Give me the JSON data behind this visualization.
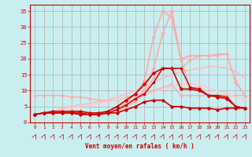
{
  "bg_color": "#c8eef0",
  "grid_color": "#b0b0b0",
  "xlabel": "Vent moyen/en rafales ( km/h )",
  "xlabel_color": "#cc0000",
  "tick_color": "#cc0000",
  "xlim": [
    -0.5,
    23.5
  ],
  "ylim": [
    0,
    37
  ],
  "yticks": [
    0,
    5,
    10,
    15,
    20,
    25,
    30,
    35
  ],
  "xticks": [
    0,
    1,
    2,
    3,
    4,
    5,
    6,
    7,
    8,
    9,
    10,
    11,
    12,
    13,
    14,
    15,
    16,
    17,
    18,
    19,
    20,
    21,
    22,
    23
  ],
  "lines": [
    {
      "x": [
        0,
        1,
        2,
        3,
        4,
        5,
        6,
        7,
        8,
        9,
        10,
        11,
        12,
        13,
        14,
        15,
        16,
        17,
        18,
        19,
        20,
        21,
        22,
        23
      ],
      "y": [
        8.5,
        8.5,
        8.5,
        8.5,
        8.0,
        8.0,
        7.5,
        7.0,
        7.0,
        7.0,
        8.0,
        8.5,
        9.0,
        10.0,
        11.0,
        12.0,
        8.5,
        8.5,
        8.5,
        8.5,
        8.5,
        8.5,
        8.5,
        8.5
      ],
      "color": "#ffaaaa",
      "lw": 1.0,
      "marker": "o",
      "ms": 2.0,
      "alpha": 1.0,
      "zorder": 2
    },
    {
      "x": [
        0,
        1,
        2,
        3,
        4,
        5,
        6,
        7,
        8,
        9,
        10,
        11,
        12,
        13,
        14,
        15,
        16,
        17,
        18,
        19,
        20,
        21,
        22,
        23
      ],
      "y": [
        2.5,
        3.0,
        3.5,
        4.5,
        5.0,
        5.5,
        6.0,
        6.5,
        7.0,
        8.0,
        9.0,
        10.0,
        11.0,
        12.5,
        14.0,
        15.0,
        16.0,
        16.5,
        17.0,
        17.5,
        17.5,
        17.0,
        16.0,
        14.0
      ],
      "color": "#ffbbbb",
      "lw": 1.2,
      "marker": null,
      "ms": 0,
      "alpha": 1.0,
      "zorder": 2
    },
    {
      "x": [
        0,
        1,
        2,
        3,
        4,
        5,
        6,
        7,
        8,
        9,
        10,
        11,
        12,
        13,
        14,
        15,
        16,
        17,
        18,
        19,
        20,
        21,
        22,
        23
      ],
      "y": [
        2.5,
        3.0,
        3.5,
        4.0,
        4.5,
        5.0,
        5.5,
        6.0,
        6.5,
        7.0,
        7.5,
        8.0,
        8.5,
        9.5,
        10.5,
        11.5,
        12.0,
        12.0,
        12.0,
        11.0,
        10.0,
        9.0,
        8.0,
        7.0
      ],
      "color": "#ffcccc",
      "lw": 1.2,
      "marker": null,
      "ms": 0,
      "alpha": 1.0,
      "zorder": 2
    },
    {
      "x": [
        0,
        1,
        2,
        3,
        4,
        5,
        6,
        7,
        8,
        9,
        10,
        11,
        12,
        13,
        14,
        15,
        16,
        17,
        18,
        19,
        20,
        21,
        22,
        23
      ],
      "y": [
        2.5,
        3.0,
        3.0,
        3.5,
        3.5,
        3.0,
        2.5,
        2.5,
        3.0,
        4.5,
        6.0,
        9.0,
        13.0,
        27.0,
        35.0,
        33.0,
        19.5,
        11.0,
        11.0,
        8.5,
        8.5,
        8.5,
        5.0,
        4.5
      ],
      "color": "#ffaaaa",
      "lw": 1.2,
      "marker": "o",
      "ms": 2.5,
      "alpha": 1.0,
      "zorder": 3
    },
    {
      "x": [
        0,
        1,
        2,
        3,
        4,
        5,
        6,
        7,
        8,
        9,
        10,
        11,
        12,
        13,
        14,
        15,
        16,
        17,
        18,
        19,
        20,
        21,
        22,
        23
      ],
      "y": [
        2.5,
        3.0,
        3.0,
        3.5,
        3.5,
        3.0,
        2.5,
        2.5,
        3.0,
        4.0,
        5.5,
        7.0,
        10.0,
        17.0,
        28.0,
        35.0,
        20.0,
        21.0,
        21.0,
        21.0,
        21.5,
        21.5,
        12.5,
        8.5
      ],
      "color": "#ffaaaa",
      "lw": 1.2,
      "marker": "o",
      "ms": 2.5,
      "alpha": 1.0,
      "zorder": 3
    },
    {
      "x": [
        0,
        1,
        2,
        3,
        4,
        5,
        6,
        7,
        8,
        9,
        10,
        11,
        12,
        13,
        14,
        15,
        16,
        17,
        18,
        19,
        20,
        21,
        22,
        23
      ],
      "y": [
        2.5,
        3.0,
        3.0,
        3.0,
        3.0,
        2.5,
        2.5,
        2.5,
        3.0,
        3.5,
        5.0,
        6.5,
        9.0,
        14.0,
        17.0,
        17.0,
        17.0,
        19.5,
        21.0,
        21.0,
        21.0,
        21.5,
        13.0,
        8.5
      ],
      "color": "#ffaaaa",
      "lw": 1.0,
      "marker": "o",
      "ms": 2.0,
      "alpha": 1.0,
      "zorder": 3
    },
    {
      "x": [
        0,
        1,
        2,
        3,
        4,
        5,
        6,
        7,
        8,
        9,
        10,
        11,
        12,
        13,
        14,
        15,
        16,
        17,
        18,
        19,
        20,
        21,
        22,
        23
      ],
      "y": [
        2.5,
        3.0,
        3.5,
        3.5,
        3.5,
        3.5,
        3.0,
        3.0,
        3.5,
        5.0,
        7.0,
        9.0,
        12.0,
        15.5,
        17.0,
        17.0,
        10.5,
        10.5,
        10.0,
        8.5,
        8.0,
        7.5,
        5.0,
        4.5
      ],
      "color": "#cc0000",
      "lw": 1.2,
      "marker": "o",
      "ms": 2.5,
      "alpha": 1.0,
      "zorder": 5
    },
    {
      "x": [
        0,
        1,
        2,
        3,
        4,
        5,
        6,
        7,
        8,
        9,
        10,
        11,
        12,
        13,
        14,
        15,
        16,
        17,
        18,
        19,
        20,
        21,
        22,
        23
      ],
      "y": [
        2.5,
        3.0,
        3.0,
        3.0,
        3.0,
        3.0,
        2.5,
        2.5,
        3.0,
        4.0,
        5.5,
        7.5,
        9.0,
        12.5,
        17.0,
        17.0,
        17.0,
        11.0,
        10.5,
        8.5,
        8.5,
        8.0,
        5.0,
        4.5
      ],
      "color": "#cc0000",
      "lw": 1.0,
      "marker": "o",
      "ms": 2.0,
      "alpha": 1.0,
      "zorder": 5
    },
    {
      "x": [
        0,
        1,
        2,
        3,
        4,
        5,
        6,
        7,
        8,
        9,
        10,
        11,
        12,
        13,
        14,
        15,
        16,
        17,
        18,
        19,
        20,
        21,
        22,
        23
      ],
      "y": [
        2.5,
        3.0,
        3.0,
        3.0,
        3.0,
        2.5,
        2.5,
        2.5,
        3.0,
        3.0,
        4.0,
        5.0,
        6.5,
        7.0,
        7.0,
        5.0,
        5.0,
        4.5,
        4.5,
        4.5,
        4.0,
        4.5,
        4.5,
        4.5
      ],
      "color": "#cc0000",
      "lw": 1.2,
      "marker": "o",
      "ms": 2.5,
      "alpha": 1.0,
      "zorder": 5
    }
  ]
}
